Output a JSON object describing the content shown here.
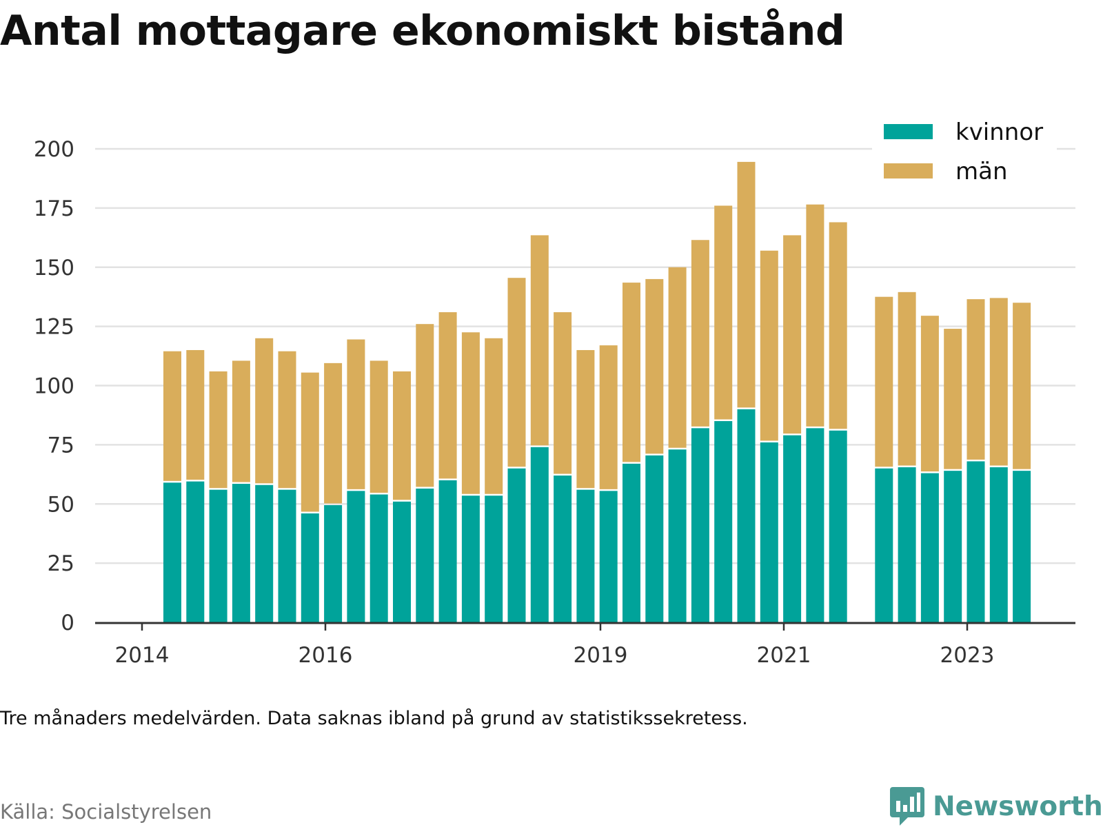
{
  "title": "Antal mottagare ekonomiskt bistånd",
  "note": "Tre månaders medelvärden. Data saknas ibland på grund av statistikssekretess.",
  "source": "Källa: Socialstyrelsen",
  "brand": "Newsworthy",
  "colors": {
    "kvinnor": "#00a39a",
    "man": "#d9ad5b",
    "grid": "#e2e2e2",
    "axis": "#333333",
    "brand": "#4a9a94"
  },
  "chart_data": {
    "type": "bar",
    "stacked": true,
    "ylim": [
      0,
      205
    ],
    "yticks": [
      0,
      25,
      50,
      75,
      100,
      125,
      150,
      175,
      200
    ],
    "xticks": [
      "2014",
      "2016",
      "2019",
      "2021",
      "2023"
    ],
    "legend": {
      "placement": "top-right",
      "entries": [
        "kvinnor",
        "män"
      ]
    },
    "grid": true,
    "series": [
      {
        "name": "kvinnor",
        "values": [
          59,
          59.5,
          56,
          58.5,
          58,
          56,
          46,
          49.5,
          55.5,
          54,
          51,
          56.5,
          60,
          53.5,
          53.5,
          65,
          74,
          62,
          56,
          55.5,
          67,
          70.5,
          73,
          82,
          85,
          90,
          76,
          79,
          82,
          81,
          null,
          65,
          65.5,
          63,
          64,
          68,
          65.5,
          64
        ]
      },
      {
        "name": "män",
        "values": [
          55.5,
          55.5,
          50,
          52,
          62,
          58.5,
          59.5,
          60,
          64,
          56.5,
          55,
          69.5,
          71,
          69,
          66.5,
          80.5,
          89.5,
          69,
          59,
          61.5,
          76.5,
          74.5,
          77,
          79.5,
          91,
          104.5,
          81,
          84.5,
          94.5,
          88,
          null,
          72.5,
          74,
          66.5,
          60,
          68.5,
          71.5,
          71
        ]
      }
    ]
  }
}
